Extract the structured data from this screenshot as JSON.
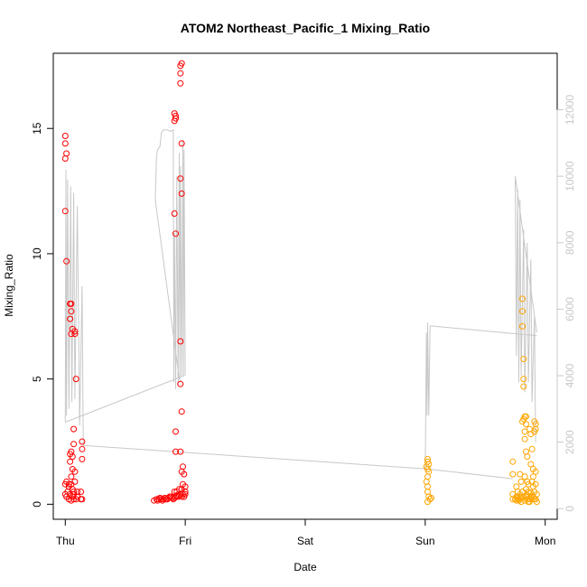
{
  "chart_data": {
    "type": "scatter",
    "title": "ATOM2 Northeast_Pacific_1 Mixing_Ratio",
    "xlabel": "Date",
    "ylabel": "Mixing_Ratio",
    "x_ticks": [
      "Thu",
      "Fri",
      "Sat",
      "Sun",
      "Mon"
    ],
    "x_unit": "days since Thu 00:00",
    "xlim": [
      -0.1,
      4.1
    ],
    "ylim": [
      -0.6,
      18.0
    ],
    "y_ticks": [
      0,
      5,
      10,
      15
    ],
    "y2_ticks": [
      0,
      2000,
      4000,
      6000,
      8000,
      10000,
      12000
    ],
    "y2lim": [
      -320,
      13700
    ],
    "grid": false,
    "colors": {
      "red": "#ff0000",
      "orange": "#ffa500",
      "line": "#c8c8c8",
      "axis": "#000000",
      "y2axis": "#c8c8c8"
    },
    "series": [
      {
        "color": "red",
        "points": [
          [
            0.0,
            14.7
          ],
          [
            0.0,
            14.4
          ],
          [
            0.01,
            14.0
          ],
          [
            0.0,
            13.8
          ],
          [
            0.0,
            11.7
          ],
          [
            0.01,
            9.7
          ],
          [
            0.04,
            8.0
          ],
          [
            0.05,
            8.0
          ],
          [
            0.05,
            7.7
          ],
          [
            0.04,
            7.4
          ],
          [
            0.06,
            7.0
          ],
          [
            0.08,
            6.9
          ],
          [
            0.05,
            6.8
          ],
          [
            0.08,
            6.8
          ],
          [
            0.09,
            5.0
          ],
          [
            0.07,
            3.0
          ],
          [
            0.07,
            2.4
          ],
          [
            0.05,
            2.1
          ],
          [
            0.04,
            2.0
          ],
          [
            0.06,
            1.9
          ],
          [
            0.04,
            1.7
          ],
          [
            0.06,
            1.4
          ],
          [
            0.08,
            1.3
          ],
          [
            0.05,
            1.1
          ],
          [
            0.01,
            0.9
          ],
          [
            0.0,
            0.8
          ],
          [
            0.03,
            0.8
          ],
          [
            0.05,
            0.8
          ],
          [
            0.08,
            0.9
          ],
          [
            0.03,
            0.7
          ],
          [
            0.06,
            0.6
          ],
          [
            0.02,
            0.5
          ],
          [
            0.07,
            0.5
          ],
          [
            0.1,
            0.5
          ],
          [
            0.13,
            0.5
          ],
          [
            0.0,
            0.4
          ],
          [
            0.04,
            0.4
          ],
          [
            0.07,
            0.4
          ],
          [
            0.1,
            0.3
          ],
          [
            0.01,
            0.3
          ],
          [
            0.06,
            0.3
          ],
          [
            0.03,
            0.2
          ],
          [
            0.07,
            0.2
          ],
          [
            0.13,
            0.2
          ],
          [
            0.09,
            0.2
          ],
          [
            0.05,
            0.15
          ],
          [
            0.14,
            2.5
          ],
          [
            0.14,
            2.2
          ],
          [
            0.14,
            1.8
          ],
          [
            0.14,
            0.2
          ],
          [
            0.74,
            0.15
          ],
          [
            0.76,
            0.2
          ],
          [
            0.77,
            0.15
          ],
          [
            0.78,
            0.2
          ],
          [
            0.79,
            0.25
          ],
          [
            0.8,
            0.2
          ],
          [
            0.81,
            0.15
          ],
          [
            0.82,
            0.2
          ],
          [
            0.83,
            0.25
          ],
          [
            0.84,
            0.2
          ],
          [
            0.85,
            0.2
          ],
          [
            0.86,
            0.25
          ],
          [
            0.87,
            0.3
          ],
          [
            0.88,
            0.3
          ],
          [
            0.89,
            0.25
          ],
          [
            0.9,
            0.2
          ],
          [
            0.91,
            0.25
          ],
          [
            0.92,
            0.3
          ],
          [
            0.93,
            0.35
          ],
          [
            0.94,
            0.3
          ],
          [
            0.95,
            0.35
          ],
          [
            0.96,
            0.4
          ],
          [
            0.97,
            0.3
          ],
          [
            0.98,
            0.4
          ],
          [
            0.99,
            0.3
          ],
          [
            1.0,
            0.4
          ],
          [
            0.91,
            0.5
          ],
          [
            0.93,
            0.5
          ],
          [
            0.95,
            0.6
          ],
          [
            0.97,
            0.6
          ],
          [
            0.98,
            0.8
          ],
          [
            1.0,
            0.7
          ],
          [
            1.0,
            0.5
          ],
          [
            0.99,
            1.2
          ],
          [
            0.98,
            1.5
          ],
          [
            0.97,
            1.3
          ],
          [
            0.96,
            2.1
          ],
          [
            0.92,
            2.1
          ],
          [
            0.92,
            2.9
          ],
          [
            0.97,
            3.7
          ],
          [
            0.96,
            4.8
          ],
          [
            0.96,
            6.5
          ],
          [
            0.92,
            10.8
          ],
          [
            0.91,
            11.6
          ],
          [
            0.97,
            12.4
          ],
          [
            0.96,
            13.0
          ],
          [
            0.97,
            14.4
          ],
          [
            0.91,
            15.3
          ],
          [
            0.92,
            15.4
          ],
          [
            0.92,
            15.5
          ],
          [
            0.91,
            15.6
          ],
          [
            0.96,
            16.8
          ],
          [
            0.96,
            17.2
          ],
          [
            0.96,
            17.5
          ],
          [
            0.97,
            17.6
          ]
        ]
      },
      {
        "color": "orange",
        "points": [
          [
            3.02,
            1.8
          ],
          [
            3.02,
            1.7
          ],
          [
            3.03,
            1.6
          ],
          [
            3.01,
            1.5
          ],
          [
            3.02,
            1.4
          ],
          [
            3.03,
            1.3
          ],
          [
            3.02,
            1.1
          ],
          [
            3.01,
            0.9
          ],
          [
            3.02,
            0.7
          ],
          [
            3.02,
            0.5
          ],
          [
            3.03,
            0.3
          ],
          [
            3.04,
            0.2
          ],
          [
            3.02,
            0.1
          ],
          [
            3.05,
            0.25
          ],
          [
            3.73,
            1.7
          ],
          [
            3.73,
            1.2
          ],
          [
            3.73,
            0.4
          ],
          [
            3.73,
            0.2
          ],
          [
            3.76,
            0.7
          ],
          [
            3.77,
            0.5
          ],
          [
            3.76,
            0.3
          ],
          [
            3.78,
            0.2
          ],
          [
            3.79,
            0.25
          ],
          [
            3.8,
            0.3
          ],
          [
            3.8,
            0.9
          ],
          [
            3.79,
            1.2
          ],
          [
            3.81,
            0.5
          ],
          [
            3.81,
            8.2
          ],
          [
            3.81,
            7.7
          ],
          [
            3.81,
            7.1
          ],
          [
            3.82,
            5.8
          ],
          [
            3.82,
            5.0
          ],
          [
            3.82,
            4.7
          ],
          [
            3.81,
            3.3
          ],
          [
            3.82,
            3.4
          ],
          [
            3.83,
            3.5
          ],
          [
            3.84,
            3.5
          ],
          [
            3.84,
            3.2
          ],
          [
            3.83,
            2.9
          ],
          [
            3.83,
            2.6
          ],
          [
            3.84,
            2.1
          ],
          [
            3.85,
            1.9
          ],
          [
            3.83,
            1.1
          ],
          [
            3.85,
            0.9
          ],
          [
            3.86,
            0.8
          ],
          [
            3.84,
            0.6
          ],
          [
            3.86,
            0.5
          ],
          [
            3.84,
            0.3
          ],
          [
            3.85,
            0.2
          ],
          [
            3.86,
            0.1
          ],
          [
            3.87,
            0.2
          ],
          [
            3.88,
            0.3
          ],
          [
            3.89,
            0.2
          ],
          [
            3.87,
            3.0
          ],
          [
            3.88,
            2.8
          ],
          [
            3.89,
            2.2
          ],
          [
            3.88,
            1.6
          ],
          [
            3.9,
            1.4
          ],
          [
            3.9,
            1.1
          ],
          [
            3.89,
            0.9
          ],
          [
            3.9,
            0.7
          ],
          [
            3.91,
            0.5
          ],
          [
            3.9,
            0.3
          ],
          [
            3.91,
            0.2
          ],
          [
            3.91,
            3.3
          ],
          [
            3.92,
            3.2
          ],
          [
            3.92,
            3.0
          ],
          [
            3.91,
            2.9
          ],
          [
            3.92,
            1.3
          ],
          [
            3.92,
            0.8
          ],
          [
            3.93,
            0.4
          ],
          [
            3.92,
            0.2
          ],
          [
            3.93,
            0.1
          ],
          [
            3.75,
            0.2
          ],
          [
            3.76,
            0.15
          ],
          [
            3.77,
            0.25
          ],
          [
            3.78,
            0.15
          ],
          [
            3.79,
            0.4
          ],
          [
            3.8,
            0.1
          ],
          [
            3.82,
            0.3
          ],
          [
            3.83,
            0.15
          ],
          [
            3.85,
            0.35
          ],
          [
            3.87,
            0.1
          ],
          [
            3.88,
            0.45
          ]
        ]
      }
    ],
    "y2_series": {
      "color": "#c8c8c8",
      "points": [
        [
          0.0,
          2600
        ],
        [
          0.005,
          10200
        ],
        [
          0.01,
          2800
        ],
        [
          0.02,
          9900
        ],
        [
          0.03,
          3000
        ],
        [
          0.045,
          9700
        ],
        [
          0.055,
          3200
        ],
        [
          0.07,
          9500
        ],
        [
          0.08,
          3300
        ],
        [
          0.1,
          9100
        ],
        [
          0.12,
          2500
        ],
        [
          0.14,
          6700
        ],
        [
          0.15,
          1900
        ],
        [
          0.95,
          3900
        ],
        [
          0.75,
          9300
        ],
        [
          0.76,
          10600
        ],
        [
          0.77,
          10800
        ],
        [
          0.79,
          10900
        ],
        [
          0.8,
          11300
        ],
        [
          0.82,
          11400
        ],
        [
          0.85,
          11400
        ],
        [
          0.88,
          11350
        ],
        [
          0.9,
          11400
        ],
        [
          0.905,
          3800
        ],
        [
          0.91,
          8300
        ],
        [
          0.92,
          3600
        ],
        [
          0.93,
          10000
        ],
        [
          0.94,
          3700
        ],
        [
          0.95,
          10700
        ],
        [
          0.955,
          3800
        ],
        [
          0.96,
          10300
        ],
        [
          0.97,
          4000
        ],
        [
          0.98,
          11100
        ],
        [
          0.985,
          4000
        ],
        [
          0.99,
          10800
        ],
        [
          1.0,
          4000
        ],
        [
          3.0,
          1200
        ],
        [
          3.01,
          5300
        ],
        [
          3.015,
          2800
        ],
        [
          3.02,
          5600
        ],
        [
          3.03,
          2800
        ],
        [
          3.04,
          5500
        ],
        [
          3.93,
          5300
        ],
        [
          3.75,
          10000
        ],
        [
          3.76,
          4600
        ],
        [
          3.77,
          9600
        ],
        [
          3.78,
          3800
        ],
        [
          3.79,
          9300
        ],
        [
          3.8,
          4000
        ],
        [
          3.82,
          8400
        ],
        [
          3.83,
          3500
        ],
        [
          3.85,
          8000
        ],
        [
          3.86,
          3800
        ],
        [
          3.88,
          7500
        ],
        [
          3.89,
          3200
        ],
        [
          3.91,
          5800
        ],
        [
          3.92,
          2000
        ]
      ],
      "connectors": [
        [
          [
            0.0,
            2600
          ],
          [
            0.99,
            4000
          ]
        ],
        [
          [
            0.15,
            1900
          ],
          [
            3.0,
            1200
          ],
          [
            3.73,
            900
          ]
        ],
        [
          [
            3.04,
            5500
          ],
          [
            3.93,
            5200
          ]
        ]
      ]
    }
  }
}
